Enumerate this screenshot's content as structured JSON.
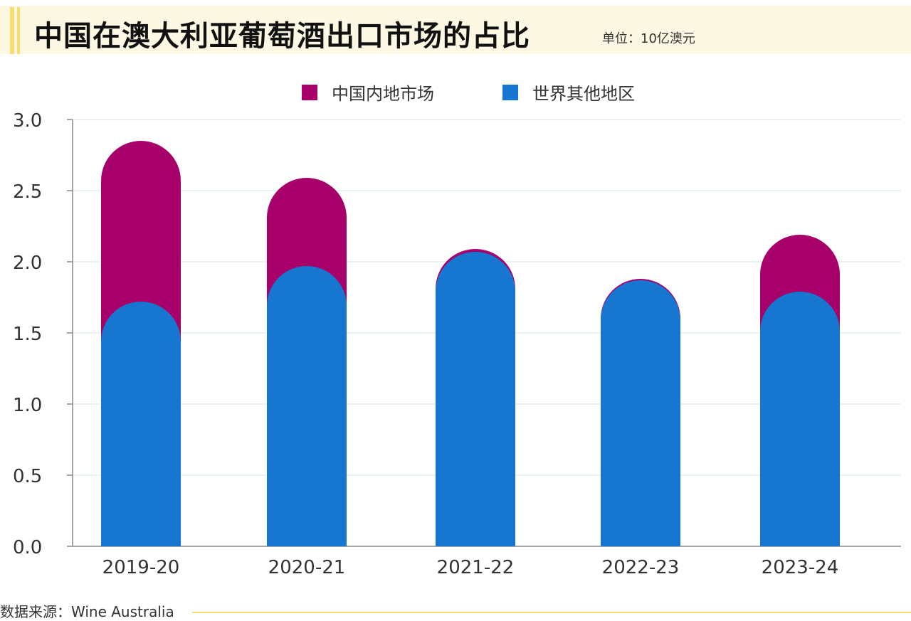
{
  "title": "中国在澳大利亚葡萄酒出口市场的占比",
  "unit": "单位：10亿澳元",
  "source": "数据来源：Wine Australia",
  "colors": {
    "china": "#a8006a",
    "world": "#1776cf",
    "grid": "#e3edf2",
    "axis": "#888888",
    "accent": "#f7dc6f"
  },
  "chart_data": {
    "type": "bar",
    "stacked": true,
    "title": "中国在澳大利亚葡萄酒出口市场的占比",
    "xlabel": "",
    "ylabel": "",
    "ylim": [
      0,
      3.0
    ],
    "yticks": [
      "0.0",
      "0.5",
      "1.0",
      "1.5",
      "2.0",
      "2.5",
      "3.0"
    ],
    "categories": [
      "2019-20",
      "2020-21",
      "2021-22",
      "2022-23",
      "2023-24"
    ],
    "series": [
      {
        "name": "世界其他地区",
        "values": [
          1.72,
          1.97,
          2.07,
          1.87,
          1.79
        ]
      },
      {
        "name": "中国内地市场",
        "values": [
          1.13,
          0.62,
          0.02,
          0.01,
          0.4
        ]
      }
    ],
    "legend": [
      "中国内地市场",
      "世界其他地区"
    ]
  }
}
